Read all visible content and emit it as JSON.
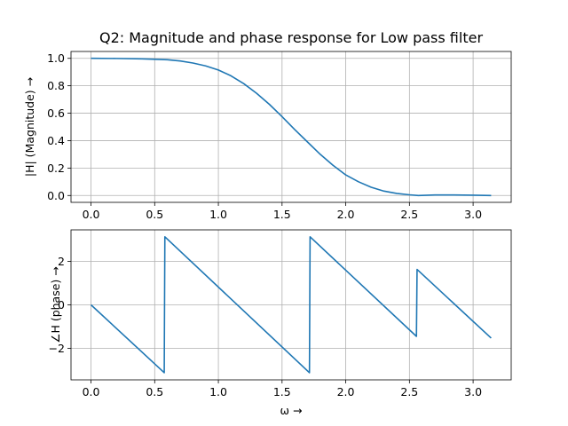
{
  "chart_data": [
    {
      "type": "line",
      "title": "Q2: Magnitude and phase response for Low pass filter",
      "xlabel": "",
      "ylabel": "|H| (Magnitude) →",
      "xlim": [
        -0.157,
        3.299
      ],
      "ylim": [
        -0.05,
        1.05
      ],
      "xticks": [
        0.0,
        0.5,
        1.0,
        1.5,
        2.0,
        2.5,
        3.0
      ],
      "xtick_labels": [
        "0.0",
        "0.5",
        "1.0",
        "1.5",
        "2.0",
        "2.5",
        "3.0"
      ],
      "yticks": [
        0.0,
        0.2,
        0.4,
        0.6,
        0.8,
        1.0
      ],
      "ytick_labels": [
        "0.0",
        "0.2",
        "0.4",
        "0.6",
        "0.8",
        "1.0"
      ],
      "grid": true,
      "color": "#1f77b4",
      "series": [
        {
          "x": [
            0.0,
            0.2,
            0.4,
            0.6,
            0.7,
            0.8,
            0.9,
            1.0,
            1.1,
            1.2,
            1.3,
            1.4,
            1.5,
            1.6,
            1.7,
            1.8,
            1.9,
            2.0,
            2.1,
            2.2,
            2.3,
            2.4,
            2.5,
            2.57,
            2.7,
            2.85,
            3.0,
            3.1416
          ],
          "y": [
            1.0,
            0.999,
            0.996,
            0.99,
            0.981,
            0.966,
            0.945,
            0.915,
            0.872,
            0.815,
            0.745,
            0.665,
            0.575,
            0.48,
            0.39,
            0.3,
            0.22,
            0.15,
            0.1,
            0.06,
            0.032,
            0.015,
            0.005,
            0.0,
            0.004,
            0.004,
            0.002,
            0.0
          ]
        }
      ]
    },
    {
      "type": "line",
      "title": "",
      "xlabel": "ω →",
      "ylabel": "∠H (phase) →",
      "xlim": [
        -0.157,
        3.299
      ],
      "ylim": [
        -3.45,
        3.45
      ],
      "xticks": [
        0.0,
        0.5,
        1.0,
        1.5,
        2.0,
        2.5,
        3.0
      ],
      "xtick_labels": [
        "0.0",
        "0.5",
        "1.0",
        "1.5",
        "2.0",
        "2.5",
        "3.0"
      ],
      "yticks": [
        -2,
        0,
        2
      ],
      "ytick_labels": [
        "−2",
        "0",
        "2"
      ],
      "grid": true,
      "color": "#1f77b4",
      "series": [
        {
          "x": [
            0.0,
            0.575,
            0.58,
            1.715,
            1.72,
            2.555,
            2.56,
            3.1416
          ],
          "y": [
            0.0,
            -3.12,
            3.13,
            -3.12,
            3.13,
            -1.45,
            1.63,
            -1.53
          ]
        }
      ]
    }
  ]
}
